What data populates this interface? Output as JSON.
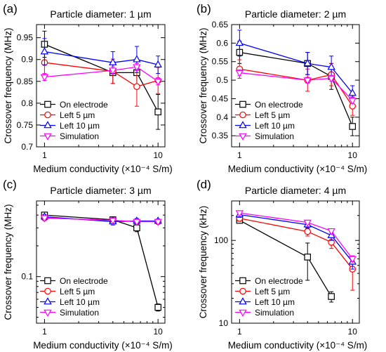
{
  "colors": {
    "On electrode": "#000000",
    "Left 5 µm": "#ff0000",
    "Left 10 µm": "#0000ff",
    "Simulation": "#ff00ff"
  },
  "chart_data": [
    {
      "panel": "(a)",
      "type": "line",
      "title": "Particle diameter: 1 µm",
      "xlabel": "Medium conductivity (×10⁻⁴ S/m)",
      "ylabel": "Crossover frequency (MHz)",
      "xscale": "log",
      "yscale": "linear",
      "xlim": [
        0.85,
        11.5
      ],
      "ylim": [
        0.7,
        0.98
      ],
      "xticks": [
        1,
        10
      ],
      "yticks": [
        0.7,
        0.75,
        0.8,
        0.85,
        0.9,
        0.95
      ],
      "ytick_labels": [
        "0.7",
        "0.75",
        "0.8",
        "0.85",
        "0.9",
        "0.95"
      ],
      "legend_pos": "bottom-left",
      "series": [
        {
          "name": "On electrode",
          "marker": "square",
          "x": [
            1,
            4,
            6.5,
            10
          ],
          "y": [
            0.935,
            0.87,
            0.87,
            0.78
          ],
          "err": [
            0.03,
            0.025,
            0.03,
            0.04
          ]
        },
        {
          "name": "Left 5 µm",
          "marker": "circle",
          "x": [
            1,
            4,
            6.5,
            10
          ],
          "y": [
            0.893,
            0.873,
            0.838,
            0.852
          ],
          "err": [
            0.025,
            0.028,
            0.045,
            0.03
          ]
        },
        {
          "name": "Left 10 µm",
          "marker": "triangle-up",
          "x": [
            1,
            4,
            6.5,
            10
          ],
          "y": [
            0.918,
            0.893,
            0.9,
            0.888
          ],
          "err": [
            0.03,
            0.025,
            0.03,
            0.02
          ]
        },
        {
          "name": "Simulation",
          "marker": "triangle-down",
          "x": [
            1,
            4,
            6.5,
            10
          ],
          "y": [
            0.86,
            0.875,
            0.883,
            0.85
          ],
          "err": [
            0.008,
            0.008,
            0.008,
            0.008
          ]
        }
      ]
    },
    {
      "panel": "(b)",
      "type": "line",
      "title": "Particle diameter: 2 µm",
      "xlabel": "Medium conductivity (×10⁻⁴ S/m)",
      "ylabel": "Crossover frequency (MHz)",
      "xscale": "log",
      "yscale": "linear",
      "xlim": [
        0.85,
        11.5
      ],
      "ylim": [
        0.32,
        0.65
      ],
      "xticks": [
        1,
        10
      ],
      "yticks": [
        0.35,
        0.4,
        0.45,
        0.5,
        0.55,
        0.6,
        0.65
      ],
      "ytick_labels": [
        "0.35",
        "0.4",
        "0.45",
        "0.5",
        "0.55",
        "0.6",
        "0.65"
      ],
      "legend_pos": "bottom-left",
      "series": [
        {
          "name": "On electrode",
          "marker": "square",
          "x": [
            1,
            4,
            6.5,
            10
          ],
          "y": [
            0.575,
            0.545,
            0.51,
            0.375
          ],
          "err": [
            0.03,
            0.03,
            0.035,
            0.025
          ]
        },
        {
          "name": "Left 5 µm",
          "marker": "circle",
          "x": [
            1,
            4,
            6.5,
            10
          ],
          "y": [
            0.53,
            0.5,
            0.515,
            0.43
          ],
          "err": [
            0.025,
            0.03,
            0.03,
            0.025
          ]
        },
        {
          "name": "Left 10 µm",
          "marker": "triangle-up",
          "x": [
            1,
            4,
            6.5,
            10
          ],
          "y": [
            0.6,
            0.545,
            0.535,
            0.465
          ],
          "err": [
            0.035,
            0.03,
            0.03,
            0.02
          ]
        },
        {
          "name": "Simulation",
          "marker": "triangle-down",
          "x": [
            1,
            4,
            6.5,
            10
          ],
          "y": [
            0.52,
            0.5,
            0.505,
            0.445
          ],
          "err": [
            0.008,
            0.008,
            0.008,
            0.008
          ]
        }
      ]
    },
    {
      "panel": "(c)",
      "type": "line",
      "title": "Particle diameter: 3 µm",
      "xlabel": "Medium conductivity (×10⁻⁴ S/m)",
      "ylabel": "Crossover frequency (MHz)",
      "xscale": "log",
      "yscale": "log",
      "xlim": [
        0.85,
        11.5
      ],
      "ylim": [
        0.035,
        0.55
      ],
      "xticks": [
        1,
        10
      ],
      "yticks": [
        0.1
      ],
      "ytick_labels": [
        "0.1"
      ],
      "legend_pos": "bottom-left",
      "series": [
        {
          "name": "On electrode",
          "marker": "square",
          "x": [
            1,
            4,
            6.5,
            10
          ],
          "y": [
            0.4,
            0.36,
            0.3,
            0.05
          ],
          "err": [
            0.015,
            0.02,
            0.025,
            0.004
          ]
        },
        {
          "name": "Left 5 µm",
          "marker": "circle",
          "x": [
            1,
            4,
            6.5,
            10
          ],
          "y": [
            0.375,
            0.355,
            0.345,
            0.345
          ],
          "err": [
            0.02,
            0.02,
            0.02,
            0.015
          ]
        },
        {
          "name": "Left 10 µm",
          "marker": "triangle-up",
          "x": [
            1,
            4,
            6.5,
            10
          ],
          "y": [
            0.385,
            0.345,
            0.35,
            0.35
          ],
          "err": [
            0.02,
            0.025,
            0.02,
            0.015
          ]
        },
        {
          "name": "Simulation",
          "marker": "triangle-down",
          "x": [
            1,
            4,
            6.5,
            10
          ],
          "y": [
            0.375,
            0.355,
            0.345,
            0.345
          ],
          "err": [
            0.006,
            0.006,
            0.006,
            0.006
          ]
        }
      ]
    },
    {
      "panel": "(d)",
      "type": "line",
      "title": "Particle diameter: 4 µm",
      "xlabel": "Medium conductivity (×10⁻⁴ S/m)",
      "ylabel": "Crossover frequency (kHz)",
      "xscale": "log",
      "yscale": "log",
      "xlim": [
        0.85,
        11.5
      ],
      "ylim": [
        10,
        300
      ],
      "xticks": [
        1,
        10
      ],
      "yticks": [
        10,
        100
      ],
      "ytick_labels": [
        "10",
        "100"
      ],
      "legend_pos": "bottom-left",
      "series": [
        {
          "name": "On electrode",
          "marker": "square",
          "x": [
            1,
            4,
            6.5
          ],
          "y": [
            175,
            63,
            21
          ],
          "err": [
            12,
            30,
            3
          ]
        },
        {
          "name": "Left 5 µm",
          "marker": "circle",
          "x": [
            1,
            4,
            6.5,
            10
          ],
          "y": [
            185,
            128,
            95,
            45
          ],
          "err": [
            15,
            15,
            15,
            20
          ]
        },
        {
          "name": "Left 10 µm",
          "marker": "triangle-up",
          "x": [
            1,
            4,
            6.5,
            10
          ],
          "y": [
            205,
            155,
            115,
            55
          ],
          "err": [
            15,
            15,
            15,
            10
          ]
        },
        {
          "name": "Simulation",
          "marker": "triangle-down",
          "x": [
            1,
            4,
            6.5,
            10
          ],
          "y": [
            215,
            165,
            130,
            60
          ],
          "err": [
            5,
            5,
            5,
            5
          ]
        }
      ]
    }
  ]
}
